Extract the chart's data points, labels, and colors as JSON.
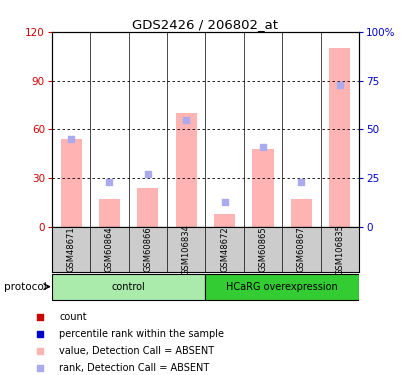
{
  "title": "GDS2426 / 206802_at",
  "samples": [
    "GSM48671",
    "GSM60864",
    "GSM60866",
    "GSM106834",
    "GSM48672",
    "GSM60865",
    "GSM60867",
    "GSM106835"
  ],
  "groups": [
    "control",
    "control",
    "control",
    "control",
    "HCaRG overexpression",
    "HCaRG overexpression",
    "HCaRG overexpression",
    "HCaRG overexpression"
  ],
  "bar_values": [
    54,
    17,
    24,
    70,
    8,
    48,
    17,
    110
  ],
  "rank_values": [
    45,
    23,
    27,
    55,
    13,
    41,
    23,
    73
  ],
  "bar_color": "#ffb3b3",
  "rank_color": "#aaaaee",
  "left_ylim": [
    0,
    120
  ],
  "left_yticks": [
    0,
    30,
    60,
    90,
    120
  ],
  "right_ylim": [
    0,
    100
  ],
  "right_yticks": [
    0,
    25,
    50,
    75,
    100
  ],
  "right_yticklabels": [
    "0",
    "25",
    "50",
    "75",
    "100%"
  ],
  "left_ycolor": "#cc0000",
  "right_ycolor": "#0000cc",
  "group_colors": {
    "control": "#88ee88",
    "HCaRG overexpression": "#33bb33"
  },
  "legend_items": [
    {
      "label": "count",
      "color": "#cc0000",
      "marker": "s"
    },
    {
      "label": "percentile rank within the sample",
      "color": "#0000cc",
      "marker": "s"
    },
    {
      "label": "value, Detection Call = ABSENT",
      "color": "#ffb3b3",
      "marker": "s"
    },
    {
      "label": "rank, Detection Call = ABSENT",
      "color": "#aaaaee",
      "marker": "s"
    }
  ],
  "protocol_label": "protocol",
  "background_color": "#ffffff",
  "plot_bg_color": "#ffffff",
  "bar_width": 0.55,
  "label_bg": "#cccccc",
  "control_light": "#aaeaaa",
  "hcarg_dark": "#33cc33"
}
